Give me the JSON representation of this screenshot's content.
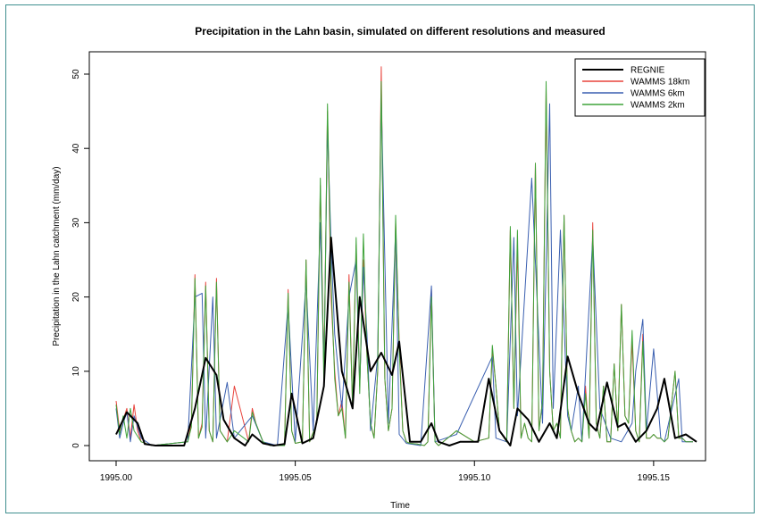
{
  "chart_data": {
    "type": "line",
    "title": "Precipitation in the Lahn basin, simulated on different resolutions and measured",
    "xlabel": "Time",
    "ylabel": "Precipitation in the Lahn catchment (mm/day)",
    "xlim": [
      1995.0,
      1995.164
    ],
    "ylim": [
      0,
      52
    ],
    "xticks": [
      1995.0,
      1995.05,
      1995.1,
      1995.15
    ],
    "xtick_labels": [
      "1995.00",
      "1995.05",
      "1995.10",
      "1995.15"
    ],
    "yticks": [
      0,
      10,
      20,
      30,
      40,
      50
    ],
    "ytick_labels": [
      "0",
      "10",
      "20",
      "30",
      "40",
      "50"
    ],
    "grid": false,
    "legend_position": "top-right",
    "series": [
      {
        "name": "REGNIE",
        "color": "#000000",
        "x": [
          1995.0,
          1995.003,
          1995.006,
          1995.008,
          1995.011,
          1995.014,
          1995.017,
          1995.019,
          1995.022,
          1995.025,
          1995.028,
          1995.03,
          1995.033,
          1995.036,
          1995.038,
          1995.041,
          1995.044,
          1995.047,
          1995.049,
          1995.052,
          1995.055,
          1995.058,
          1995.06,
          1995.063,
          1995.066,
          1995.068,
          1995.071,
          1995.074,
          1995.077,
          1995.079,
          1995.082,
          1995.085,
          1995.088,
          1995.09,
          1995.093,
          1995.096,
          1995.099,
          1995.101,
          1995.104,
          1995.107,
          1995.11,
          1995.112,
          1995.115,
          1995.118,
          1995.121,
          1995.123,
          1995.126,
          1995.129,
          1995.132,
          1995.134,
          1995.137,
          1995.14,
          1995.142,
          1995.145,
          1995.148,
          1995.151,
          1995.153,
          1995.156,
          1995.159,
          1995.162
        ],
        "y": [
          1.5,
          4.5,
          3.0,
          0.2,
          0.0,
          0.0,
          0.0,
          0.0,
          5.0,
          11.8,
          9.5,
          3.5,
          1.0,
          0.0,
          1.5,
          0.3,
          0.0,
          0.2,
          7.0,
          0.3,
          1.0,
          8.0,
          28.0,
          10.0,
          5.0,
          20.0,
          10.0,
          12.5,
          9.5,
          14.0,
          0.5,
          0.5,
          3.0,
          0.5,
          0.0,
          0.5,
          0.5,
          0.5,
          9.0,
          2.0,
          0.0,
          5.0,
          3.5,
          0.5,
          3.0,
          1.0,
          12.0,
          7.0,
          3.0,
          2.0,
          8.5,
          2.5,
          3.0,
          0.5,
          2.0,
          5.0,
          9.0,
          1.0,
          1.5,
          0.5
        ],
        "linewidth": 2
      },
      {
        "name": "WAMMS 18km",
        "color": "#e8433c",
        "x": [
          1995.0,
          1995.001,
          1995.003,
          1995.004,
          1995.005,
          1995.006,
          1995.007,
          1995.01,
          1995.02,
          1995.021,
          1995.022,
          1995.023,
          1995.024,
          1995.025,
          1995.026,
          1995.027,
          1995.028,
          1995.029,
          1995.031,
          1995.033,
          1995.037,
          1995.038,
          1995.039,
          1995.041,
          1995.043,
          1995.047,
          1995.048,
          1995.049,
          1995.05,
          1995.052,
          1995.053,
          1995.054,
          1995.056,
          1995.057,
          1995.058,
          1995.059,
          1995.06,
          1995.061,
          1995.062,
          1995.063,
          1995.064,
          1995.065,
          1995.066,
          1995.067,
          1995.068,
          1995.069,
          1995.07,
          1995.071,
          1995.072,
          1995.073,
          1995.074,
          1995.075,
          1995.076,
          1995.077,
          1995.078,
          1995.079,
          1995.08,
          1995.081,
          1995.082,
          1995.084,
          1995.086,
          1995.087,
          1995.088,
          1995.089,
          1995.09,
          1995.095,
          1995.1,
          1995.104,
          1995.105,
          1995.106,
          1995.107,
          1995.109,
          1995.11,
          1995.111,
          1995.112,
          1995.113,
          1995.114,
          1995.115,
          1995.116,
          1995.117,
          1995.118,
          1995.119,
          1995.12,
          1995.121,
          1995.122,
          1995.123,
          1995.124,
          1995.125,
          1995.126,
          1995.127,
          1995.128,
          1995.129,
          1995.13,
          1995.131,
          1995.132,
          1995.133,
          1995.134,
          1995.135,
          1995.136,
          1995.137,
          1995.138,
          1995.139,
          1995.14,
          1995.141,
          1995.142,
          1995.143,
          1995.144,
          1995.145,
          1995.146,
          1995.147,
          1995.148,
          1995.149,
          1995.15,
          1995.151,
          1995.152,
          1995.153,
          1995.154,
          1995.156,
          1995.157,
          1995.158,
          1995.159,
          1995.16,
          1995.161
        ],
        "y": [
          6.0,
          2.0,
          5.0,
          1.0,
          5.5,
          2.0,
          0.5,
          0.0,
          0.5,
          3.0,
          23.0,
          1.0,
          3.0,
          22.0,
          2.0,
          0.5,
          22.5,
          2.0,
          0.5,
          8.0,
          0.5,
          5.0,
          3.0,
          0.5,
          0.0,
          0.0,
          21.0,
          2.0,
          0.3,
          0.5,
          25.0,
          0.5,
          3.0,
          35.0,
          10.0,
          45.0,
          20.0,
          10.0,
          4.0,
          6.0,
          1.0,
          23.0,
          5.0,
          27.0,
          8.0,
          25.0,
          12.0,
          3.0,
          1.0,
          10.0,
          51.0,
          9.0,
          2.0,
          5.0,
          30.0,
          14.0,
          2.0,
          0.5,
          0.3,
          0.2,
          0.0,
          0.5,
          21.0,
          0.5,
          0.0,
          2.0,
          0.5,
          1.0,
          13.0,
          8.0,
          2.0,
          0.5,
          29.0,
          5.0,
          27.0,
          1.0,
          3.0,
          1.0,
          0.5,
          38.0,
          2.0,
          6.0,
          48.0,
          10.0,
          2.0,
          3.0,
          1.0,
          31.0,
          5.0,
          2.0,
          0.5,
          1.0,
          0.5,
          8.0,
          1.0,
          30.0,
          3.0,
          1.0,
          8.0,
          0.5,
          0.5,
          11.0,
          2.0,
          19.0,
          4.0,
          3.0,
          14.0,
          2.0,
          0.5,
          15.0,
          1.0,
          1.0,
          1.5,
          1.0,
          1.0,
          0.5,
          1.0,
          10.0,
          1.0,
          1.0,
          0.5,
          0.5,
          0.5
        ],
        "linewidth": 1
      },
      {
        "name": "WAMMS 6km",
        "color": "#3a5fb0",
        "x": [
          1995.0,
          1995.001,
          1995.002,
          1995.003,
          1995.004,
          1995.005,
          1995.007,
          1995.01,
          1995.02,
          1995.022,
          1995.024,
          1995.025,
          1995.027,
          1995.028,
          1995.03,
          1995.031,
          1995.033,
          1995.038,
          1995.041,
          1995.045,
          1995.048,
          1995.05,
          1995.053,
          1995.055,
          1995.057,
          1995.058,
          1995.059,
          1995.06,
          1995.061,
          1995.063,
          1995.065,
          1995.067,
          1995.068,
          1995.069,
          1995.07,
          1995.071,
          1995.073,
          1995.074,
          1995.076,
          1995.078,
          1995.079,
          1995.081,
          1995.085,
          1995.088,
          1995.089,
          1995.095,
          1995.105,
          1995.106,
          1995.109,
          1995.111,
          1995.112,
          1995.116,
          1995.119,
          1995.121,
          1995.122,
          1995.124,
          1995.126,
          1995.127,
          1995.129,
          1995.13,
          1995.133,
          1995.135,
          1995.138,
          1995.141,
          1995.144,
          1995.145,
          1995.147,
          1995.148,
          1995.15,
          1995.152,
          1995.153,
          1995.157,
          1995.158,
          1995.161
        ],
        "y": [
          5.0,
          1.0,
          3.0,
          4.5,
          0.5,
          4.0,
          1.0,
          0.0,
          0.5,
          20.0,
          20.5,
          1.0,
          20.0,
          1.0,
          6.0,
          8.5,
          1.0,
          4.0,
          0.5,
          0.0,
          19.0,
          0.5,
          22.0,
          2.0,
          30.0,
          10.0,
          43.0,
          27.0,
          15.0,
          5.0,
          20.0,
          25.0,
          8.0,
          24.0,
          15.0,
          2.0,
          12.0,
          47.0,
          3.0,
          29.0,
          1.5,
          0.3,
          0.0,
          21.5,
          0.5,
          1.5,
          12.0,
          1.0,
          0.5,
          28.0,
          4.0,
          36.0,
          3.0,
          46.0,
          5.0,
          29.0,
          4.0,
          2.0,
          8.0,
          0.5,
          28.0,
          5.0,
          1.0,
          0.5,
          3.0,
          10.0,
          17.0,
          2.0,
          13.0,
          1.0,
          0.5,
          9.0,
          0.5,
          0.5
        ],
        "linewidth": 1
      },
      {
        "name": "WAMMS 2km",
        "color": "#3fa33a",
        "x": [
          1995.0,
          1995.001,
          1995.002,
          1995.003,
          1995.004,
          1995.005,
          1995.007,
          1995.01,
          1995.02,
          1995.021,
          1995.022,
          1995.023,
          1995.024,
          1995.025,
          1995.026,
          1995.027,
          1995.028,
          1995.029,
          1995.031,
          1995.033,
          1995.037,
          1995.038,
          1995.039,
          1995.041,
          1995.043,
          1995.047,
          1995.048,
          1995.049,
          1995.05,
          1995.052,
          1995.053,
          1995.054,
          1995.056,
          1995.057,
          1995.058,
          1995.059,
          1995.06,
          1995.061,
          1995.062,
          1995.063,
          1995.064,
          1995.065,
          1995.066,
          1995.067,
          1995.068,
          1995.069,
          1995.07,
          1995.071,
          1995.072,
          1995.073,
          1995.074,
          1995.075,
          1995.076,
          1995.077,
          1995.078,
          1995.079,
          1995.08,
          1995.081,
          1995.082,
          1995.084,
          1995.086,
          1995.087,
          1995.088,
          1995.089,
          1995.09,
          1995.095,
          1995.1,
          1995.104,
          1995.105,
          1995.106,
          1995.107,
          1995.109,
          1995.11,
          1995.111,
          1995.112,
          1995.113,
          1995.114,
          1995.115,
          1995.116,
          1995.117,
          1995.118,
          1995.119,
          1995.12,
          1995.121,
          1995.122,
          1995.123,
          1995.124,
          1995.125,
          1995.126,
          1995.127,
          1995.128,
          1995.129,
          1995.13,
          1995.131,
          1995.132,
          1995.133,
          1995.134,
          1995.135,
          1995.136,
          1995.137,
          1995.138,
          1995.139,
          1995.14,
          1995.141,
          1995.142,
          1995.143,
          1995.144,
          1995.145,
          1995.146,
          1995.147,
          1995.148,
          1995.149,
          1995.15,
          1995.151,
          1995.152,
          1995.153,
          1995.154,
          1995.156,
          1995.157,
          1995.158,
          1995.159,
          1995.16,
          1995.161
        ],
        "y": [
          5.5,
          1.5,
          4.0,
          1.0,
          5.0,
          2.0,
          0.5,
          0.0,
          0.5,
          2.5,
          22.5,
          1.0,
          2.5,
          21.5,
          2.0,
          0.5,
          22.0,
          2.0,
          0.5,
          2.0,
          0.5,
          4.5,
          3.0,
          0.5,
          0.0,
          0.0,
          20.5,
          2.0,
          0.3,
          0.5,
          25.0,
          0.5,
          3.0,
          36.0,
          8.0,
          46.0,
          22.0,
          9.0,
          4.0,
          5.0,
          1.0,
          22.0,
          5.0,
          28.0,
          7.0,
          28.5,
          12.0,
          3.0,
          1.0,
          10.0,
          49.0,
          9.0,
          2.0,
          5.0,
          31.0,
          13.0,
          2.0,
          0.5,
          0.3,
          0.2,
          0.0,
          0.5,
          20.0,
          0.5,
          0.0,
          2.0,
          0.5,
          1.0,
          13.5,
          8.0,
          2.0,
          0.5,
          29.5,
          5.0,
          29.0,
          1.0,
          3.0,
          1.0,
          0.5,
          38.0,
          2.0,
          6.0,
          49.0,
          10.0,
          2.0,
          3.0,
          1.0,
          31.0,
          5.0,
          2.0,
          0.5,
          1.0,
          0.5,
          7.0,
          1.0,
          29.0,
          3.0,
          1.0,
          8.0,
          0.5,
          0.5,
          11.0,
          2.0,
          19.0,
          4.0,
          3.0,
          15.5,
          2.0,
          0.5,
          14.0,
          1.0,
          1.0,
          1.5,
          1.0,
          1.0,
          0.5,
          1.0,
          10.0,
          1.0,
          1.0,
          0.5,
          0.5,
          0.5
        ],
        "linewidth": 1
      }
    ]
  }
}
